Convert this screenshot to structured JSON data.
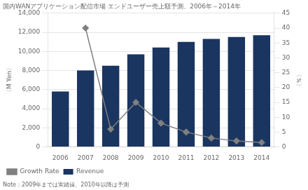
{
  "chart_data": {
    "type": "bar",
    "title": "国内WANアプリケーション配信市場 エンドユーザー売上額予測、2006年～2014年",
    "note": "Note：2009年までは実績値、2010年以降は予測",
    "categories": [
      "2006",
      "2007",
      "2008",
      "2009",
      "2010",
      "2011",
      "2012",
      "2013",
      "2014"
    ],
    "series": [
      {
        "name": "Revenue",
        "type": "bar",
        "color": "#1a3560",
        "values": [
          5800,
          8000,
          8500,
          9700,
          10400,
          11000,
          11300,
          11500,
          11700
        ]
      },
      {
        "name": "Growth Rate",
        "type": "line",
        "axis": "y2",
        "color": "#808080",
        "marker": "diamond",
        "values": [
          null,
          40,
          6,
          15,
          8,
          5,
          3,
          2,
          1.5
        ]
      }
    ],
    "ylabel": "〈M Yen〉",
    "y2label": "〈％〉",
    "ylim": [
      0,
      14000
    ],
    "yticks": [
      0,
      {
        "value": 2000,
        "label": "2,000"
      },
      {
        "value": 4000,
        "label": "4,000"
      },
      {
        "value": 6000,
        "label": "6,000"
      },
      {
        "value": 8000,
        "label": "8,000"
      },
      {
        "value": 10000,
        "label": "10,000"
      },
      {
        "value": 12000,
        "label": "12,000"
      },
      {
        "value": 14000,
        "label": "14,000"
      }
    ],
    "y2lim": [
      0,
      45
    ],
    "y2ticks": [
      0,
      5,
      10,
      15,
      20,
      25,
      30,
      35,
      40,
      45
    ],
    "grid": true,
    "legend": "bottom"
  }
}
